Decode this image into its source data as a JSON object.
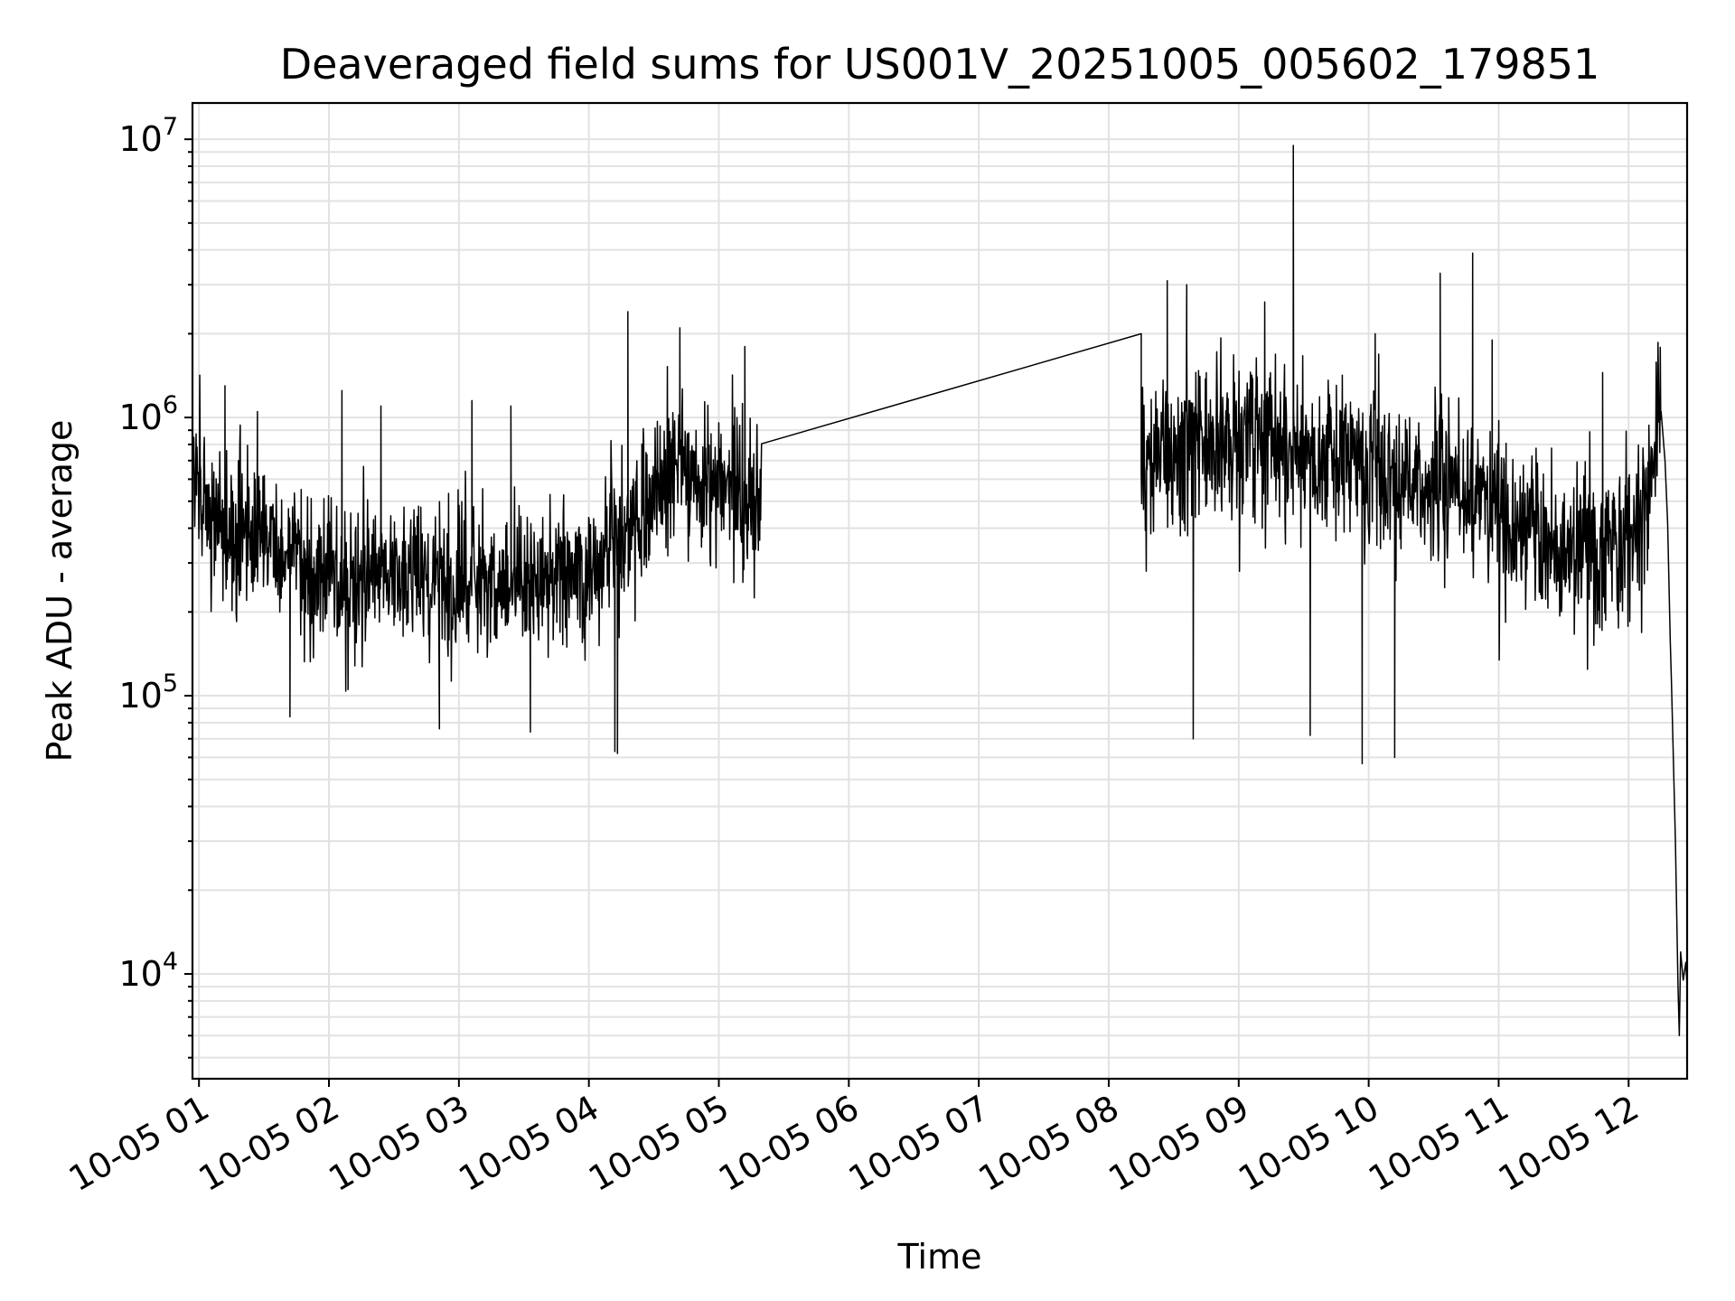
{
  "colors": {
    "line": "#000000",
    "grid": "#e2e2e2",
    "background": "#ffffff"
  },
  "chart_data": {
    "type": "line",
    "title": "Deaveraged field sums for US001V_20251005_005602_179851",
    "xlabel": "Time",
    "ylabel": "Peak ADU - average",
    "yscale": "log",
    "ylim": [
      4200,
      13500000
    ],
    "xlim_hours": [
      0.95,
      12.45
    ],
    "grid": true,
    "x_tick_labels": [
      {
        "hour": 1,
        "label": "10-05 01"
      },
      {
        "hour": 2,
        "label": "10-05 02"
      },
      {
        "hour": 3,
        "label": "10-05 03"
      },
      {
        "hour": 4,
        "label": "10-05 04"
      },
      {
        "hour": 5,
        "label": "10-05 05"
      },
      {
        "hour": 6,
        "label": "10-05 06"
      },
      {
        "hour": 7,
        "label": "10-05 07"
      },
      {
        "hour": 8,
        "label": "10-05 08"
      },
      {
        "hour": 9,
        "label": "10-05 09"
      },
      {
        "hour": 10,
        "label": "10-05 10"
      },
      {
        "hour": 11,
        "label": "10-05 11"
      },
      {
        "hour": 12,
        "label": "10-05 12"
      }
    ],
    "y_tick_labels": [
      {
        "value": 10000,
        "base": "10",
        "exp": "4"
      },
      {
        "value": 100000,
        "base": "10",
        "exp": "5"
      },
      {
        "value": 1000000,
        "base": "10",
        "exp": "6"
      },
      {
        "value": 10000000,
        "base": "10",
        "exp": "7"
      }
    ],
    "series": [
      {
        "name": "Peak ADU - average",
        "segments": [
          {
            "description": "first observing block",
            "t_start": 0.95,
            "t_end": 5.33,
            "sample_step_hours": 0.0035,
            "trend": [
              [
                0.95,
                700000
              ],
              [
                1.1,
                420000
              ],
              [
                1.5,
                350000
              ],
              [
                2.0,
                280000
              ],
              [
                2.5,
                260000
              ],
              [
                3.0,
                260000
              ],
              [
                3.5,
                260000
              ],
              [
                4.0,
                270000
              ],
              [
                4.3,
                380000
              ],
              [
                4.6,
                650000
              ],
              [
                5.0,
                560000
              ],
              [
                5.33,
                500000
              ]
            ],
            "log10_noise_amplitude": 0.22,
            "spikes": [
              [
                1.2,
                1300000
              ],
              [
                1.45,
                1050000
              ],
              [
                2.1,
                1250000
              ],
              [
                2.4,
                1100000
              ],
              [
                3.1,
                1150000
              ],
              [
                3.4,
                1100000
              ],
              [
                4.3,
                2400000
              ],
              [
                4.7,
                2100000
              ],
              [
                5.2,
                1800000
              ],
              [
                1.7,
                84000
              ],
              [
                2.85,
                76000
              ],
              [
                3.55,
                74000
              ],
              [
                4.2,
                63000
              ],
              [
                4.22,
                62000
              ]
            ]
          },
          {
            "description": "second observing block",
            "t_start": 8.25,
            "t_end": 12.25,
            "sample_step_hours": 0.0035,
            "trend": [
              [
                8.25,
                700000
              ],
              [
                8.6,
                800000
              ],
              [
                9.0,
                800000
              ],
              [
                9.5,
                750000
              ],
              [
                10.0,
                650000
              ],
              [
                10.5,
                600000
              ],
              [
                11.0,
                450000
              ],
              [
                11.5,
                330000
              ],
              [
                12.0,
                350000
              ],
              [
                12.2,
                650000
              ],
              [
                12.25,
                1050000
              ]
            ],
            "log10_noise_amplitude": 0.25,
            "spikes": [
              [
                8.25,
                2000000
              ],
              [
                8.45,
                3100000
              ],
              [
                8.6,
                3000000
              ],
              [
                9.2,
                2600000
              ],
              [
                9.42,
                9500000
              ],
              [
                10.05,
                2000000
              ],
              [
                10.55,
                3300000
              ],
              [
                10.8,
                3900000
              ],
              [
                10.95,
                1900000
              ],
              [
                11.8,
                1450000
              ],
              [
                8.65,
                70000
              ],
              [
                9.95,
                57000
              ],
              [
                10.2,
                60000
              ],
              [
                9.55,
                72000
              ]
            ]
          },
          {
            "description": "end-of-night drop",
            "points": [
              [
                12.25,
                1050000
              ],
              [
                12.28,
                700000
              ],
              [
                12.3,
                420000
              ],
              [
                12.32,
                160000
              ],
              [
                12.33,
                110000
              ],
              [
                12.36,
                30000
              ],
              [
                12.38,
                9000
              ],
              [
                12.39,
                6000
              ],
              [
                12.4,
                12000
              ],
              [
                12.42,
                9500
              ],
              [
                12.44,
                11000
              ],
              [
                12.45,
                9000
              ]
            ]
          }
        ]
      }
    ]
  }
}
